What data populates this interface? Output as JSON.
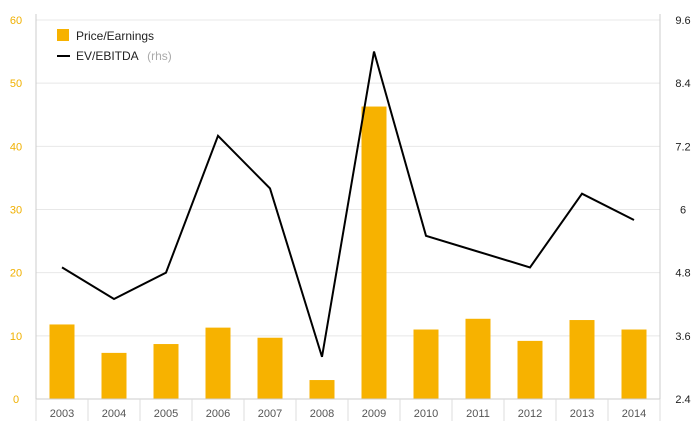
{
  "chart_data": {
    "type": "bar",
    "categories": [
      "2003",
      "2004",
      "2005",
      "2006",
      "2007",
      "2008",
      "2009",
      "2010",
      "2011",
      "2012",
      "2013",
      "2014"
    ],
    "series": [
      {
        "name": "Price/Earnings",
        "type": "bar",
        "axis": "left",
        "color": "#f7b200",
        "values": [
          11.8,
          7.3,
          8.7,
          11.3,
          9.7,
          3.0,
          46.3,
          11.0,
          12.7,
          9.2,
          12.5,
          11.0
        ]
      },
      {
        "name": "EV/EBITDA",
        "name_suffix": "(rhs)",
        "type": "line",
        "axis": "right",
        "color": "#000000",
        "values": [
          4.9,
          4.3,
          4.8,
          7.4,
          6.4,
          3.2,
          9.0,
          5.5,
          5.2,
          4.9,
          6.3,
          5.8
        ]
      }
    ],
    "y_left": {
      "ylim": [
        0,
        60
      ],
      "ticks": [
        "0",
        "10",
        "20",
        "30",
        "40",
        "50",
        "60"
      ]
    },
    "y_right": {
      "ylim": [
        2.4,
        9.6
      ],
      "ticks": [
        "2.4",
        "3.6",
        "4.8",
        "6",
        "7.2",
        "8.4",
        "9.6"
      ]
    },
    "grid": true,
    "legend_position": "top-left",
    "colors": {
      "left_axis": "#f0b000",
      "grid": "#e8e8e8",
      "axis": "#cccccc"
    }
  }
}
